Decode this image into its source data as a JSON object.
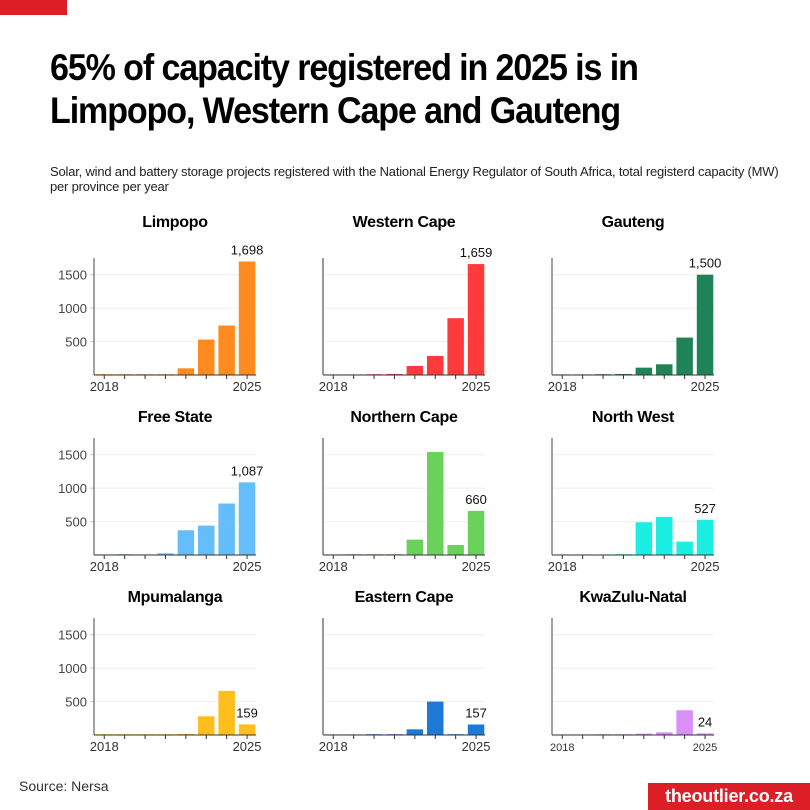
{
  "header": {
    "title": "65% of capacity registered in 2025 is in Limpopo, Western Cape and Gauteng",
    "subtitle": "Solar, wind and battery storage projects registered with the National Energy Regulator of South Africa, total registerd capacity (MW) per province per year"
  },
  "footer": {
    "source": "Source: Nersa",
    "brand": "theoutlier.co.za"
  },
  "colors": {
    "brand_red": "#dc1f26"
  },
  "chart_data": [
    {
      "type": "bar",
      "title": "Limpopo",
      "color": "#ff8a1f",
      "x": [
        2018,
        2019,
        2020,
        2021,
        2022,
        2023,
        2024,
        2025
      ],
      "values": [
        10,
        3,
        2,
        10,
        100,
        530,
        740,
        1698
      ],
      "label_value": "1,698",
      "xtick_labels": [
        "2018",
        "2025"
      ],
      "ytick_labels": [
        "500",
        "1000",
        "1500"
      ],
      "yticks": [
        500,
        1000,
        1500
      ],
      "ylim": [
        0,
        1750
      ],
      "ylabel": "",
      "xlabel": "",
      "grid": true
    },
    {
      "type": "bar",
      "title": "Western Cape",
      "color": "#ff3a3a",
      "x": [
        2018,
        2019,
        2020,
        2021,
        2022,
        2023,
        2024,
        2025
      ],
      "values": [
        0,
        0,
        10,
        15,
        135,
        285,
        850,
        1659
      ],
      "label_value": "1,659",
      "xtick_labels": [
        "2018",
        "2025"
      ],
      "ytick_labels": [],
      "yticks": [
        500,
        1000,
        1500
      ],
      "ylim": [
        0,
        1750
      ],
      "ylabel": "",
      "xlabel": "",
      "grid": true
    },
    {
      "type": "bar",
      "title": "Gauteng",
      "color": "#1e8457",
      "x": [
        2018,
        2019,
        2020,
        2021,
        2022,
        2023,
        2024,
        2025
      ],
      "values": [
        0,
        0,
        10,
        15,
        110,
        160,
        560,
        1500
      ],
      "label_value": "1,500",
      "xtick_labels": [
        "2018",
        "2025"
      ],
      "ytick_labels": [],
      "yticks": [
        500,
        1000,
        1500
      ],
      "ylim": [
        0,
        1750
      ],
      "ylabel": "",
      "xlabel": "",
      "grid": true
    },
    {
      "type": "bar",
      "title": "Free State",
      "color": "#66bdfc",
      "x": [
        2018,
        2019,
        2020,
        2021,
        2022,
        2023,
        2024,
        2025
      ],
      "values": [
        0,
        2,
        0,
        25,
        370,
        440,
        770,
        1087
      ],
      "label_value": "1,087",
      "xtick_labels": [
        "2018",
        "2025"
      ],
      "ytick_labels": [
        "500",
        "1000",
        "1500"
      ],
      "yticks": [
        500,
        1000,
        1500
      ],
      "ylim": [
        0,
        1750
      ],
      "ylabel": "",
      "xlabel": "",
      "grid": true
    },
    {
      "type": "bar",
      "title": "Northern Cape",
      "color": "#6ad15a",
      "x": [
        2018,
        2019,
        2020,
        2021,
        2022,
        2023,
        2024,
        2025
      ],
      "values": [
        0,
        2,
        2,
        8,
        230,
        1540,
        150,
        660
      ],
      "label_value": "660",
      "xtick_labels": [
        "2018",
        "2025"
      ],
      "ytick_labels": [],
      "yticks": [
        500,
        1000,
        1500
      ],
      "ylim": [
        0,
        1750
      ],
      "ylabel": "",
      "xlabel": "",
      "grid": true
    },
    {
      "type": "bar",
      "title": "North West",
      "color": "#1beee3",
      "x": [
        2018,
        2019,
        2020,
        2021,
        2022,
        2023,
        2024,
        2025
      ],
      "values": [
        0,
        0,
        0,
        5,
        490,
        570,
        200,
        527
      ],
      "label_value": "527",
      "xtick_labels": [
        "2018",
        "2025"
      ],
      "ytick_labels": [],
      "yticks": [
        500,
        1000,
        1500
      ],
      "ylim": [
        0,
        1750
      ],
      "ylabel": "",
      "xlabel": "",
      "grid": true
    },
    {
      "type": "bar",
      "title": "Mpumalanga",
      "color": "#ffbe1c",
      "x": [
        2018,
        2019,
        2020,
        2021,
        2022,
        2023,
        2024,
        2025
      ],
      "values": [
        2,
        2,
        2,
        8,
        15,
        280,
        660,
        159
      ],
      "label_value": "159",
      "xtick_labels": [
        "2018",
        "2025"
      ],
      "ytick_labels": [
        "500",
        "1000",
        "1500"
      ],
      "yticks": [
        500,
        1000,
        1500
      ],
      "ylim": [
        0,
        1750
      ],
      "ylabel": "",
      "xlabel": "",
      "grid": true
    },
    {
      "type": "bar",
      "title": "Eastern Cape",
      "color": "#1c7ad6",
      "x": [
        2018,
        2019,
        2020,
        2021,
        2022,
        2023,
        2024,
        2025
      ],
      "values": [
        0,
        0,
        2,
        5,
        85,
        500,
        5,
        157
      ],
      "label_value": "157",
      "xtick_labels": [
        "2018",
        "2025"
      ],
      "ytick_labels": [],
      "yticks": [
        500,
        1000,
        1500
      ],
      "ylim": [
        0,
        1750
      ],
      "ylabel": "",
      "xlabel": "",
      "grid": true
    },
    {
      "type": "bar",
      "title": "KwaZulu-Natal",
      "color": "#da8ef7",
      "x": [
        2018,
        2019,
        2020,
        2021,
        2022,
        2023,
        2024,
        2025
      ],
      "values": [
        0,
        0,
        3,
        2,
        20,
        40,
        370,
        24
      ],
      "label_value": "24",
      "xtick_labels": [
        "2018",
        "2025"
      ],
      "ytick_labels": [],
      "yticks": [
        500,
        1000,
        1500
      ],
      "ylim": [
        0,
        1750
      ],
      "ylabel": "",
      "xlabel": "",
      "grid": true
    }
  ]
}
